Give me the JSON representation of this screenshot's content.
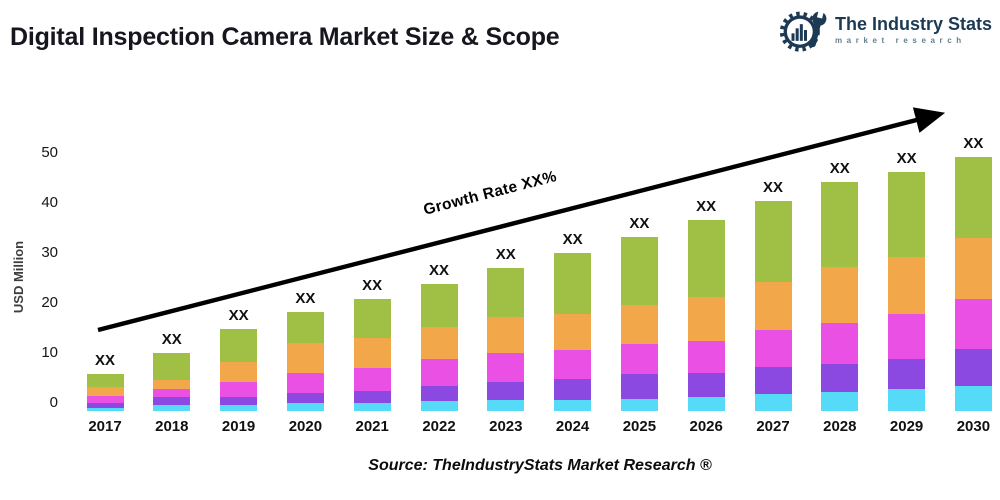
{
  "title": "Digital Inspection Camera Market Size & Scope",
  "logo": {
    "name": "The Industry Stats",
    "tagline": "market research",
    "color": "#1d3a55",
    "tagline_color": "#64808f"
  },
  "source": "Source: TheIndustryStats Market Research ®",
  "chart_data": {
    "type": "bar",
    "stacked": true,
    "title": "",
    "xlabel": "",
    "ylabel": "USD Million",
    "ylim": [
      0,
      55
    ],
    "yticks": [
      0,
      10,
      20,
      30,
      40,
      50
    ],
    "grid": false,
    "legend": "none",
    "bar_label": "XX",
    "annotation": {
      "label": "Growth Rate XX%",
      "type": "trend-arrow"
    },
    "categories": [
      "2017",
      "2018",
      "2019",
      "2020",
      "2021",
      "2022",
      "2023",
      "2024",
      "2025",
      "2026",
      "2027",
      "2028",
      "2029",
      "2030"
    ],
    "series": [
      {
        "name": "segment-1-cyan",
        "color": "#55daf8",
        "values": [
          0.6,
          1.2,
          1.2,
          1.6,
          1.6,
          2.0,
          2.2,
          2.2,
          2.4,
          2.8,
          3.4,
          3.8,
          4.4,
          5.0
        ]
      },
      {
        "name": "segment-2-purple",
        "color": "#8b49e1",
        "values": [
          1.0,
          1.6,
          1.6,
          2.0,
          2.4,
          3.0,
          3.6,
          4.2,
          5.0,
          4.8,
          5.4,
          5.6,
          6.0,
          7.4
        ]
      },
      {
        "name": "segment-3-magenta",
        "color": "#e950e3",
        "values": [
          1.4,
          1.6,
          3.0,
          4.0,
          4.6,
          5.4,
          5.8,
          5.8,
          6.0,
          6.4,
          7.4,
          8.2,
          9.0,
          10.0
        ]
      },
      {
        "name": "segment-4-orange",
        "color": "#f3a74b",
        "values": [
          1.8,
          1.8,
          4.0,
          6.0,
          6.0,
          6.4,
          7.2,
          7.2,
          7.8,
          8.8,
          9.6,
          11.2,
          11.4,
          12.2
        ]
      },
      {
        "name": "segment-5-green",
        "color": "#a0bf45",
        "values": [
          2.6,
          5.4,
          6.6,
          6.2,
          7.8,
          8.6,
          9.8,
          12.2,
          13.6,
          15.4,
          16.2,
          17.0,
          17.0,
          16.2
        ]
      }
    ],
    "totals_estimated": [
      7.4,
      11.6,
      16.4,
      19.8,
      22.4,
      25.4,
      28.6,
      31.6,
      34.8,
      38.2,
      42.0,
      45.8,
      47.8,
      50.8
    ]
  }
}
